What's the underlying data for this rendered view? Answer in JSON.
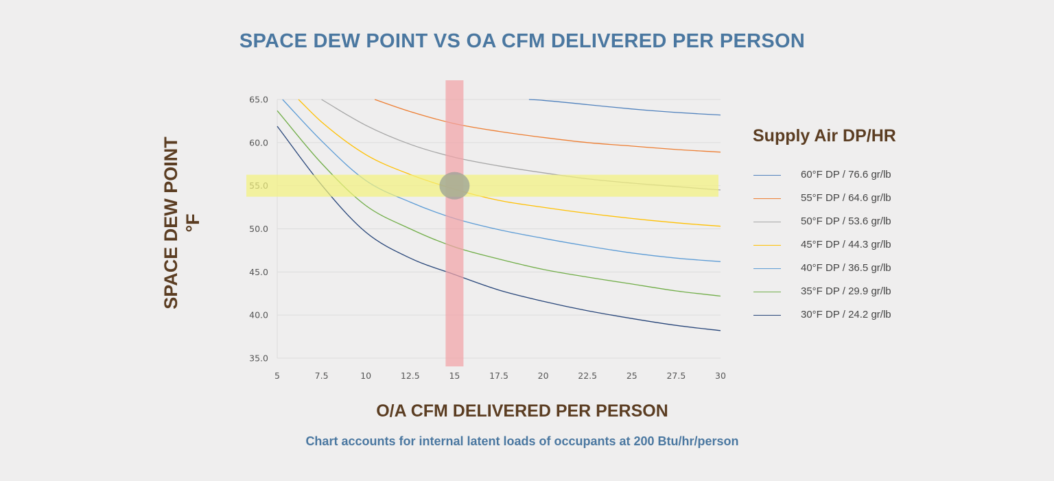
{
  "title": "SPACE DEW POINT VS OA CFM DELIVERED PER PERSON",
  "note": "Chart accounts for internal latent loads of occupants at 200 Btu/hr/person",
  "legend_title": "Supply Air DP/HR",
  "chart_data": {
    "type": "line",
    "title": "SPACE DEW POINT VS OA CFM DELIVERED PER PERSON",
    "xlabel": "O/A CFM DELIVERED PER PERSON",
    "ylabel_lines": [
      "SPACE DEW POINT",
      "°F"
    ],
    "xlim": [
      5,
      30
    ],
    "ylim": [
      35,
      65
    ],
    "x_ticks": [
      "5",
      "7.5",
      "10",
      "12.5",
      "15",
      "17.5",
      "20",
      "22.5",
      "25",
      "27.5",
      "30"
    ],
    "y_ticks": [
      "35.0",
      "40.0",
      "45.0",
      "50.0",
      "55.0",
      "60.0",
      "65.0"
    ],
    "grid": true,
    "legend_position": "right",
    "highlights": {
      "vertical_band_x": 15,
      "horizontal_band_y": 55,
      "marker_point": [
        15,
        55
      ]
    },
    "series": [
      {
        "name": "60°F DP / 76.6 gr/lb",
        "color": "#4f81bd",
        "x": [
          19.2,
          20,
          22.5,
          25,
          27.5,
          30
        ],
        "values": [
          65.0,
          64.9,
          64.4,
          63.9,
          63.5,
          63.2
        ]
      },
      {
        "name": "55°F DP / 64.6 gr/lb",
        "color": "#ed7d31",
        "x": [
          10.5,
          12.5,
          15,
          17.5,
          20,
          22.5,
          25,
          27.5,
          30
        ],
        "values": [
          65.0,
          63.6,
          62.2,
          61.3,
          60.6,
          60.0,
          59.6,
          59.2,
          58.9
        ]
      },
      {
        "name": "50°F DP / 53.6 gr/lb",
        "color": "#a5a5a5",
        "x": [
          7.5,
          10,
          12.5,
          15,
          17.5,
          20,
          22.5,
          25,
          27.5,
          30
        ],
        "values": [
          65.0,
          62.0,
          59.8,
          58.3,
          57.3,
          56.5,
          55.8,
          55.3,
          54.9,
          54.5
        ]
      },
      {
        "name": "45°F DP / 44.3 gr/lb",
        "color": "#ffc000",
        "x": [
          6.2,
          7.5,
          10,
          12.5,
          15,
          17.5,
          20,
          22.5,
          25,
          27.5,
          30
        ],
        "values": [
          65.0,
          62.4,
          58.6,
          56.3,
          54.6,
          53.3,
          52.5,
          51.8,
          51.2,
          50.7,
          50.3
        ]
      },
      {
        "name": "40°F DP / 36.5 gr/lb",
        "color": "#5b9bd5",
        "x": [
          5.3,
          7.5,
          10,
          12.5,
          15,
          17.5,
          20,
          22.5,
          25,
          27.5,
          30
        ],
        "values": [
          65.0,
          60.2,
          55.6,
          53.1,
          51.2,
          49.9,
          48.9,
          48.0,
          47.2,
          46.6,
          46.2
        ]
      },
      {
        "name": "35°F DP / 29.9 gr/lb",
        "color": "#70ad47",
        "x": [
          5,
          7.5,
          10,
          12.5,
          15,
          17.5,
          20,
          22.5,
          25,
          27.5,
          30
        ],
        "values": [
          63.7,
          57.6,
          52.7,
          50.0,
          47.9,
          46.5,
          45.3,
          44.4,
          43.6,
          42.8,
          42.2
        ]
      },
      {
        "name": "30°F DP / 24.2 gr/lb",
        "color": "#264478",
        "x": [
          5,
          7.5,
          10,
          12.5,
          15,
          17.5,
          20,
          22.5,
          25,
          27.5,
          30
        ],
        "values": [
          61.9,
          55.1,
          49.6,
          46.6,
          44.7,
          42.9,
          41.6,
          40.5,
          39.6,
          38.8,
          38.2
        ]
      }
    ]
  }
}
